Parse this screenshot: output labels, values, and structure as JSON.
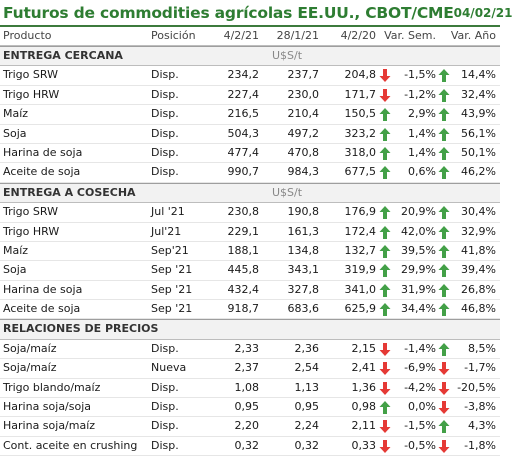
{
  "title": "Futuros de commodities agrícolas EE.UU., CBOT/CME",
  "date": "04/02/21",
  "colors": {
    "up": "#43a047",
    "down": "#e53935",
    "accent": "#2e7d32"
  },
  "columns": {
    "producto": "Producto",
    "posicion": "Posición",
    "d1": "4/2/21",
    "d2": "28/1/21",
    "d3": "4/2/20",
    "sem": "Var. Sem.",
    "ano": "Var. Año"
  },
  "sections": [
    {
      "title": "ENTREGA CERCANA",
      "unit": "U$S/t",
      "rows": [
        {
          "name": "Trigo SRW",
          "pos": "Disp.",
          "d1": "234,2",
          "d2": "237,7",
          "d3": "204,8",
          "a1": "down",
          "sem": "-1,5%",
          "a2": "up",
          "ano": "14,4%"
        },
        {
          "name": "Trigo HRW",
          "pos": "Disp.",
          "d1": "227,4",
          "d2": "230,0",
          "d3": "171,7",
          "a1": "down",
          "sem": "-1,2%",
          "a2": "up",
          "ano": "32,4%"
        },
        {
          "name": "Maíz",
          "pos": "Disp.",
          "d1": "216,5",
          "d2": "210,4",
          "d3": "150,5",
          "a1": "up",
          "sem": "2,9%",
          "a2": "up",
          "ano": "43,9%"
        },
        {
          "name": "Soja",
          "pos": "Disp.",
          "d1": "504,3",
          "d2": "497,2",
          "d3": "323,2",
          "a1": "up",
          "sem": "1,4%",
          "a2": "up",
          "ano": "56,1%"
        },
        {
          "name": "Harina de soja",
          "pos": "Disp.",
          "d1": "477,4",
          "d2": "470,8",
          "d3": "318,0",
          "a1": "up",
          "sem": "1,4%",
          "a2": "up",
          "ano": "50,1%"
        },
        {
          "name": "Aceite de soja",
          "pos": "Disp.",
          "d1": "990,7",
          "d2": "984,3",
          "d3": "677,5",
          "a1": "up",
          "sem": "0,6%",
          "a2": "up",
          "ano": "46,2%"
        }
      ]
    },
    {
      "title": "ENTREGA A COSECHA",
      "unit": "U$S/t",
      "rows": [
        {
          "name": "Trigo SRW",
          "pos": "Jul '21",
          "d1": "230,8",
          "d2": "190,8",
          "d3": "176,9",
          "a1": "up",
          "sem": "20,9%",
          "a2": "up",
          "ano": "30,4%"
        },
        {
          "name": "Trigo HRW",
          "pos": "Jul'21",
          "d1": "229,1",
          "d2": "161,3",
          "d3": "172,4",
          "a1": "up",
          "sem": "42,0%",
          "a2": "up",
          "ano": "32,9%"
        },
        {
          "name": "Maíz",
          "pos": "Sep'21",
          "d1": "188,1",
          "d2": "134,8",
          "d3": "132,7",
          "a1": "up",
          "sem": "39,5%",
          "a2": "up",
          "ano": "41,8%"
        },
        {
          "name": "Soja",
          "pos": "Sep '21",
          "d1": "445,8",
          "d2": "343,1",
          "d3": "319,9",
          "a1": "up",
          "sem": "29,9%",
          "a2": "up",
          "ano": "39,4%"
        },
        {
          "name": "Harina de soja",
          "pos": "Sep '21",
          "d1": "432,4",
          "d2": "327,8",
          "d3": "341,0",
          "a1": "up",
          "sem": "31,9%",
          "a2": "up",
          "ano": "26,8%"
        },
        {
          "name": "Aceite de soja",
          "pos": "Sep '21",
          "d1": "918,7",
          "d2": "683,6",
          "d3": "625,9",
          "a1": "up",
          "sem": "34,4%",
          "a2": "up",
          "ano": "46,8%"
        }
      ]
    },
    {
      "title": "RELACIONES DE PRECIOS",
      "unit": "",
      "rows": [
        {
          "name": "Soja/maíz",
          "pos": "Disp.",
          "d1": "2,33",
          "d2": "2,36",
          "d3": "2,15",
          "a1": "down",
          "sem": "-1,4%",
          "a2": "up",
          "ano": "8,5%"
        },
        {
          "name": "Soja/maíz",
          "pos": "Nueva",
          "d1": "2,37",
          "d2": "2,54",
          "d3": "2,41",
          "a1": "down",
          "sem": "-6,9%",
          "a2": "down",
          "ano": "-1,7%"
        },
        {
          "name": "Trigo blando/maíz",
          "pos": "Disp.",
          "d1": "1,08",
          "d2": "1,13",
          "d3": "1,36",
          "a1": "down",
          "sem": "-4,2%",
          "a2": "down",
          "ano": "-20,5%"
        },
        {
          "name": "Harina soja/soja",
          "pos": "Disp.",
          "d1": "0,95",
          "d2": "0,95",
          "d3": "0,98",
          "a1": "up",
          "sem": "0,0%",
          "a2": "down",
          "ano": "-3,8%"
        },
        {
          "name": "Harina soja/maíz",
          "pos": "Disp.",
          "d1": "2,20",
          "d2": "2,24",
          "d3": "2,11",
          "a1": "down",
          "sem": "-1,5%",
          "a2": "up",
          "ano": "4,3%"
        },
        {
          "name": "Cont. aceite en crushing",
          "pos": "Disp.",
          "d1": "0,32",
          "d2": "0,32",
          "d3": "0,33",
          "a1": "down",
          "sem": "-0,5%",
          "a2": "down",
          "ano": "-1,8%"
        }
      ]
    }
  ]
}
